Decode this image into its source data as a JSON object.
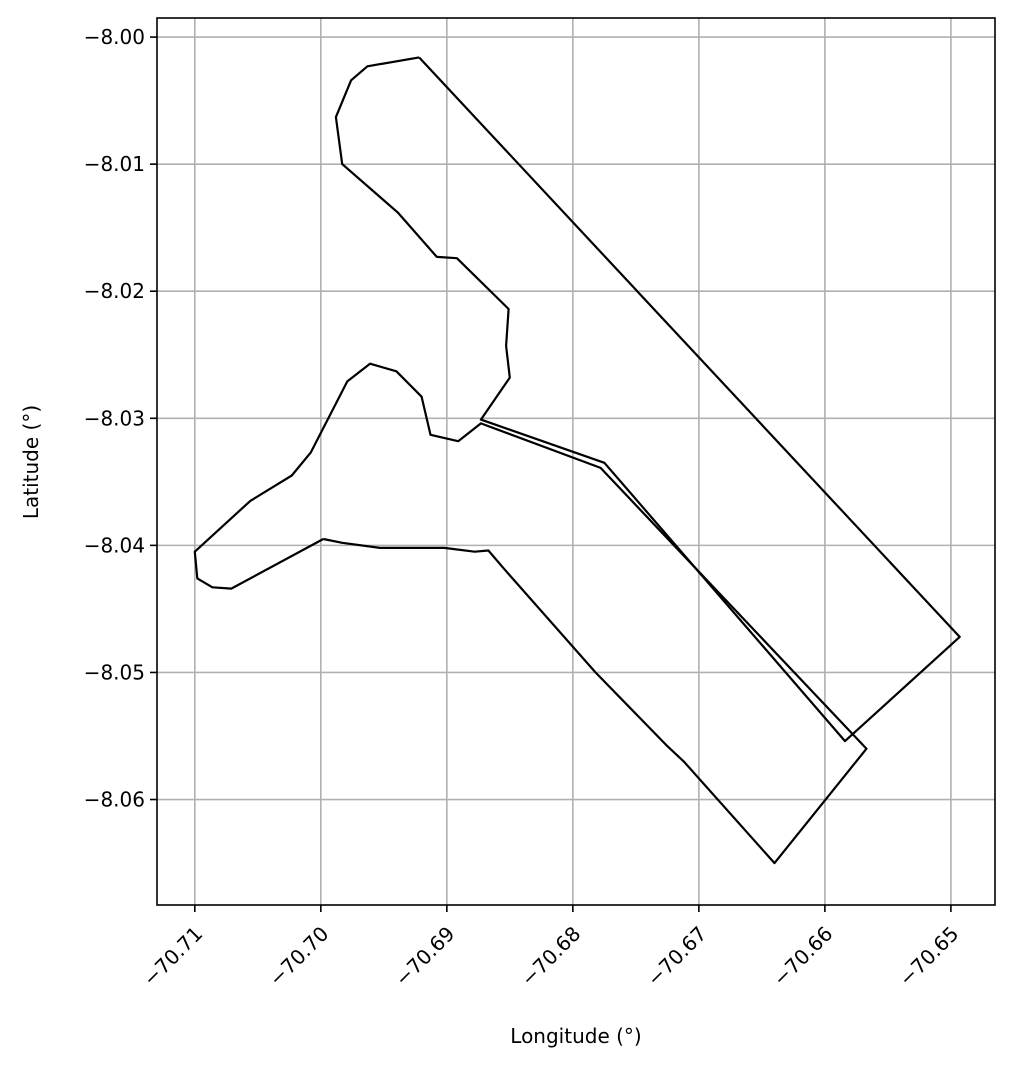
{
  "chart_data": {
    "type": "line",
    "title": "",
    "xlabel": "Longitude (°)",
    "ylabel": "Latitude (°)",
    "xlim": [
      -70.713,
      -70.6465
    ],
    "ylim": [
      -8.0683,
      -7.9985
    ],
    "xticks": [
      -70.71,
      -70.7,
      -70.69,
      -70.68,
      -70.67,
      -70.66,
      -70.65
    ],
    "xtick_labels": [
      "−70.71",
      "−70.70",
      "−70.69",
      "−70.68",
      "−70.67",
      "−70.66",
      "−70.65"
    ],
    "yticks": [
      -8.0,
      -8.01,
      -8.02,
      -8.03,
      -8.04,
      -8.05,
      -8.06
    ],
    "ytick_labels": [
      "−8.00",
      "−8.01",
      "−8.02",
      "−8.03",
      "−8.04",
      "−8.05",
      "−8.06"
    ],
    "grid": true,
    "line_color": "#000000",
    "grid_color": "#b0b0b0",
    "series": [
      {
        "points": [
          [
            -70.6922,
            -8.0016
          ],
          [
            -70.6963,
            -8.0023
          ],
          [
            -70.6976,
            -8.0034
          ],
          [
            -70.6988,
            -8.0063
          ],
          [
            -70.6983,
            -8.01
          ],
          [
            -70.6939,
            -8.0138
          ],
          [
            -70.6908,
            -8.0173
          ],
          [
            -70.6892,
            -8.0174
          ],
          [
            -70.6851,
            -8.0214
          ],
          [
            -70.6853,
            -8.0243
          ],
          [
            -70.685,
            -8.0268
          ],
          [
            -70.6873,
            -8.0301
          ],
          [
            -70.6775,
            -8.0335
          ],
          [
            -70.6584,
            -8.0554
          ],
          [
            -70.6493,
            -8.0472
          ],
          [
            -70.6922,
            -8.0016
          ]
        ]
      },
      {
        "points": [
          [
            -70.6998,
            -8.0395
          ],
          [
            -70.6983,
            -8.0398
          ],
          [
            -70.6953,
            -8.0402
          ],
          [
            -70.6902,
            -8.0402
          ],
          [
            -70.6878,
            -8.0405
          ],
          [
            -70.6867,
            -8.0404
          ],
          [
            -70.6855,
            -8.0418
          ],
          [
            -70.6782,
            -8.05
          ],
          [
            -70.6726,
            -8.0557
          ],
          [
            -70.6712,
            -8.057
          ],
          [
            -70.664,
            -8.065
          ],
          [
            -70.6567,
            -8.056
          ],
          [
            -70.6778,
            -8.0339
          ],
          [
            -70.6873,
            -8.0304
          ],
          [
            -70.6891,
            -8.0318
          ],
          [
            -70.6913,
            -8.0313
          ],
          [
            -70.692,
            -8.0283
          ],
          [
            -70.694,
            -8.0263
          ],
          [
            -70.6961,
            -8.0257
          ],
          [
            -70.6979,
            -8.0271
          ],
          [
            -70.7008,
            -8.0327
          ],
          [
            -70.7023,
            -8.0345
          ],
          [
            -70.7056,
            -8.0365
          ],
          [
            -70.71,
            -8.0405
          ],
          [
            -70.7098,
            -8.0426
          ],
          [
            -70.7086,
            -8.0433
          ],
          [
            -70.7071,
            -8.0434
          ],
          [
            -70.6998,
            -8.0395
          ]
        ]
      }
    ]
  }
}
